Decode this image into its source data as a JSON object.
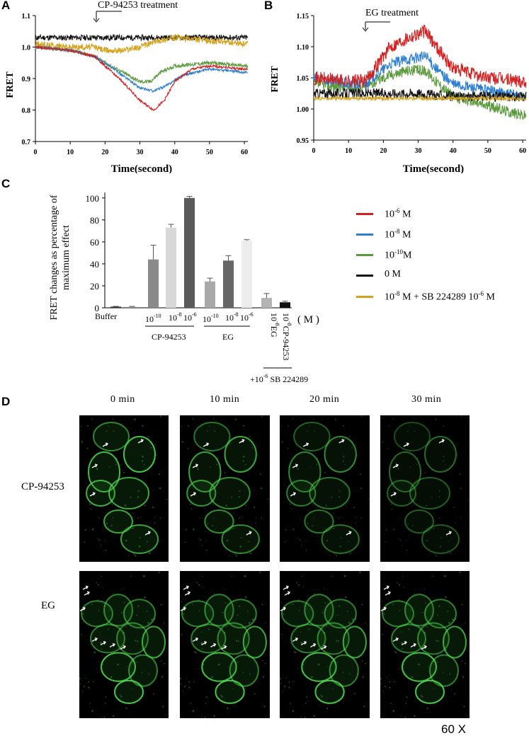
{
  "figure": {
    "panel_labels": {
      "a": "A",
      "b": "B",
      "c": "C",
      "d": "D"
    },
    "magnification": "60 X"
  },
  "panel_a": {
    "annotation": "CP-94253 treatment",
    "ylabel": "FRET",
    "xlabel": "Time(second)",
    "yticks": [
      "0.7",
      "0.8",
      "0.9",
      "1.0",
      "1.1"
    ],
    "xticks": [
      "0",
      "10",
      "20",
      "30",
      "40",
      "50",
      "60"
    ]
  },
  "panel_b": {
    "annotation": "EG treatment",
    "ylabel": "FRET",
    "xlabel": "Time(second)",
    "yticks": [
      "0.95",
      "1.00",
      "1.05",
      "1.10",
      "1.15"
    ],
    "xticks": [
      "0",
      "10",
      "20",
      "30",
      "40",
      "50",
      "60"
    ]
  },
  "panel_c": {
    "ylabel_line1": "FRET changes as percentage of",
    "ylabel_line2": "maximum effect",
    "yticks": [
      "0",
      "20",
      "40",
      "60",
      "80",
      "100"
    ],
    "unit": "( M )",
    "labels": {
      "buffer": "Buffer",
      "cp_group": "CP-94253",
      "eg_group": "EG",
      "sb_group_prefix": "+10",
      "sb_group_exp": "-6",
      "sb_group_suffix": " SB 224289",
      "eg_single": "EG",
      "cp_single": "CP-94253"
    },
    "conc": {
      "base": "10",
      "e10": "-10",
      "e8": "-8",
      "e6": "-6"
    }
  },
  "legend": [
    {
      "color": "#d21f1f",
      "base": "10",
      "exp": "-6",
      "tail": " M"
    },
    {
      "color": "#2e7fd0",
      "base": "10",
      "exp": "-8",
      "tail": " M"
    },
    {
      "color": "#5a9a3c",
      "base": "10",
      "exp": "-10",
      "tail": "M"
    },
    {
      "color": "#111111",
      "text": "0 M"
    },
    {
      "color": "#d4a21c",
      "base": "10",
      "exp": "-8",
      "mid": " M + SB 224289 10",
      "exp2": "-6",
      "tail": " M"
    }
  ],
  "panel_d": {
    "times": [
      "0  min",
      "10  min",
      "20  min",
      "30  min"
    ],
    "rows": [
      "CP-94253",
      "EG"
    ]
  },
  "chart_data": [
    {
      "type": "line",
      "panel": "A",
      "xlabel": "Time(second)",
      "ylabel": "FRET",
      "xlim": [
        0,
        61
      ],
      "ylim": [
        0.7,
        1.1
      ],
      "series": [
        {
          "color": "#111111",
          "x": [
            0,
            10,
            17,
            20,
            30,
            40,
            50,
            60
          ],
          "y": [
            1.03,
            1.03,
            1.03,
            1.03,
            1.03,
            1.03,
            1.03,
            1.03
          ]
        },
        {
          "color": "#d4a21c",
          "x": [
            0,
            10,
            17,
            20,
            25,
            30,
            35,
            40,
            50,
            60
          ],
          "y": [
            1.01,
            1.0,
            1.0,
            0.99,
            0.99,
            1.0,
            1.02,
            1.03,
            1.02,
            1.01
          ]
        },
        {
          "color": "#5a9a3c",
          "x": [
            0,
            10,
            17,
            20,
            25,
            30,
            33,
            36,
            40,
            50,
            60
          ],
          "y": [
            1.0,
            0.99,
            0.97,
            0.95,
            0.92,
            0.89,
            0.89,
            0.92,
            0.94,
            0.95,
            0.94
          ]
        },
        {
          "color": "#2e7fd0",
          "x": [
            0,
            10,
            17,
            20,
            25,
            30,
            34,
            38,
            42,
            50,
            60
          ],
          "y": [
            1.0,
            0.99,
            0.97,
            0.95,
            0.91,
            0.87,
            0.86,
            0.88,
            0.91,
            0.93,
            0.92
          ]
        },
        {
          "color": "#d21f1f",
          "x": [
            0,
            10,
            17,
            20,
            25,
            30,
            34,
            37,
            40,
            45,
            50,
            60
          ],
          "y": [
            1.0,
            0.99,
            0.97,
            0.94,
            0.89,
            0.83,
            0.8,
            0.83,
            0.89,
            0.93,
            0.94,
            0.93
          ]
        }
      ]
    },
    {
      "type": "line",
      "panel": "B",
      "xlabel": "Time(second)",
      "ylabel": "FRET",
      "xlim": [
        0,
        61
      ],
      "ylim": [
        0.95,
        1.15
      ],
      "series": [
        {
          "color": "#5a9a3c",
          "x": [
            0,
            10,
            15,
            18,
            22,
            27,
            32,
            36,
            40,
            50,
            60
          ],
          "y": [
            1.04,
            1.035,
            1.035,
            1.045,
            1.055,
            1.062,
            1.062,
            1.04,
            1.02,
            1.005,
            0.99
          ]
        },
        {
          "color": "#2e7fd0",
          "x": [
            0,
            10,
            15,
            18,
            22,
            27,
            32,
            36,
            40,
            50,
            60
          ],
          "y": [
            1.05,
            1.04,
            1.04,
            1.055,
            1.072,
            1.08,
            1.085,
            1.06,
            1.04,
            1.03,
            1.02
          ]
        },
        {
          "color": "#d21f1f",
          "x": [
            0,
            10,
            15,
            18,
            22,
            27,
            32,
            36,
            40,
            50,
            60
          ],
          "y": [
            1.05,
            1.045,
            1.045,
            1.07,
            1.1,
            1.115,
            1.125,
            1.095,
            1.065,
            1.05,
            1.045
          ]
        },
        {
          "color": "#111111",
          "x": [
            0,
            10,
            20,
            30,
            40,
            50,
            60
          ],
          "y": [
            1.025,
            1.025,
            1.025,
            1.025,
            1.02,
            1.02,
            1.02
          ]
        },
        {
          "color": "#d4a21c",
          "x": [
            0,
            10,
            20,
            30,
            40,
            50,
            60
          ],
          "y": [
            1.017,
            1.017,
            1.017,
            1.017,
            1.017,
            1.017,
            1.017
          ]
        }
      ]
    },
    {
      "type": "bar",
      "panel": "C",
      "ylabel": "FRET changes as percentage of maximum effect",
      "ylim": [
        0,
        105
      ],
      "groups": [
        "Buffer",
        "CP-94253",
        "EG",
        "+10-6 SB 224289"
      ],
      "bars": [
        {
          "group": "Buffer",
          "conc": "",
          "value": 1,
          "err": 0.3,
          "color": "#333333"
        },
        {
          "group": "Buffer",
          "conc": "",
          "value": 0.8,
          "err": 0.5,
          "color": "#888888"
        },
        {
          "group": "CP-94253",
          "conc": "10-10",
          "value": 44,
          "err": 13,
          "color": "#8a8a8a"
        },
        {
          "group": "CP-94253",
          "conc": "10-8",
          "value": 73,
          "err": 3,
          "color": "#d8d8d8"
        },
        {
          "group": "CP-94253",
          "conc": "10-6",
          "value": 100,
          "err": 1.5,
          "color": "#5a5a5a"
        },
        {
          "group": "EG",
          "conc": "10-10",
          "value": 24,
          "err": 3,
          "color": "#a9a9a9"
        },
        {
          "group": "EG",
          "conc": "10-8",
          "value": 43,
          "err": 4.5,
          "color": "#666666"
        },
        {
          "group": "EG",
          "conc": "10-6",
          "value": 61,
          "err": 1,
          "color": "#ececec"
        },
        {
          "group": "+10-6 SB 224289",
          "conc": "10-8 EG",
          "value": 9,
          "err": 4,
          "color": "#b4b4b4"
        },
        {
          "group": "+10-6 SB 224289",
          "conc": "10-8 CP-94253",
          "value": 5,
          "err": 1,
          "color": "#111111"
        }
      ]
    }
  ]
}
